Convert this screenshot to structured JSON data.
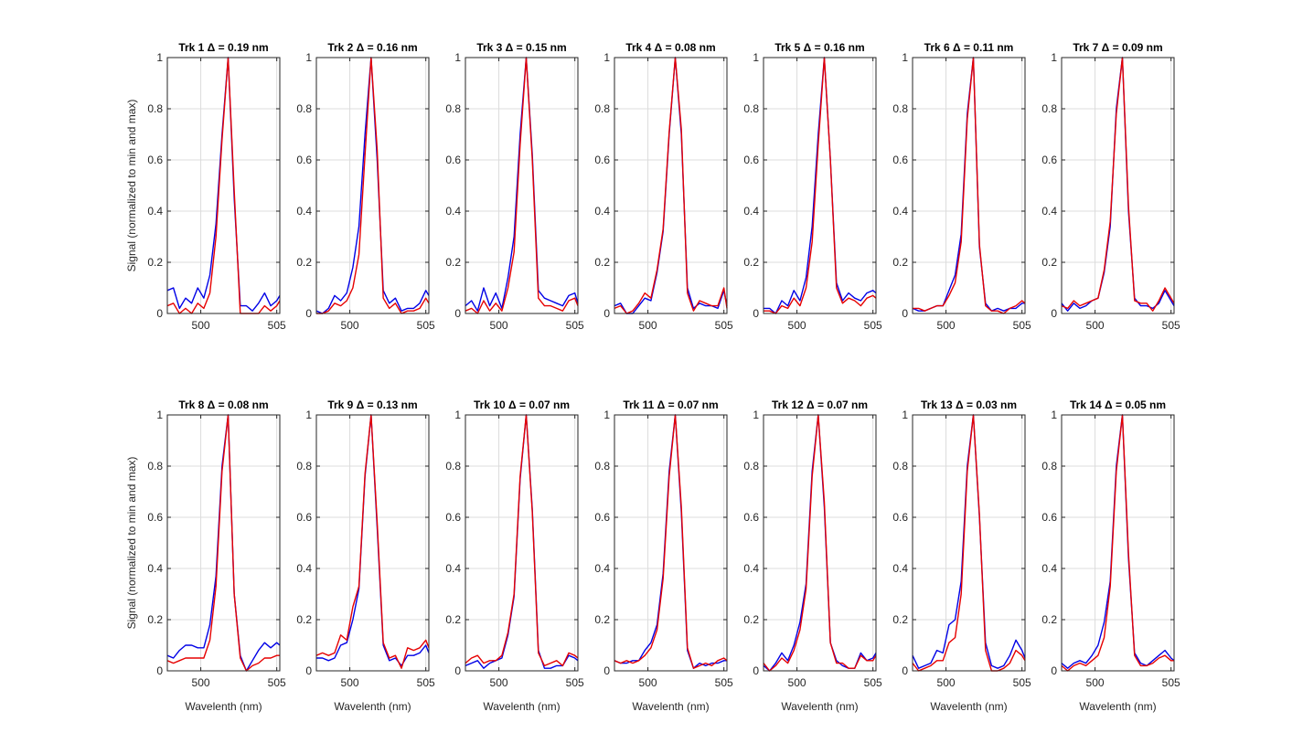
{
  "chart_data": {
    "type": "line",
    "layout": "2x7 small multiples",
    "xlabel": "Wavelenth (nm)",
    "ylabel": "Signal (normalized to min and max)",
    "xlim": [
      497.8,
      505.2
    ],
    "ylim": [
      0,
      1
    ],
    "xticks": [
      500,
      505
    ],
    "xtick_labels": [
      "500",
      "505"
    ],
    "yticks": [
      0,
      0.2,
      0.4,
      0.6,
      0.8,
      1
    ],
    "ytick_labels": [
      "0",
      "0.2",
      "0.4",
      "0.6",
      "0.8",
      "1"
    ],
    "grid": true,
    "x": [
      497.8,
      498.2,
      498.6,
      499.0,
      499.4,
      499.8,
      500.2,
      500.6,
      501.0,
      501.4,
      501.8,
      502.2,
      502.6,
      503.0,
      503.4,
      503.8,
      504.2,
      504.6,
      505.0,
      505.2
    ],
    "series_colors": {
      "blue": "#0000e6",
      "red": "#e60000"
    },
    "subplots": [
      {
        "title": "Trk 1 Δ = 0.19 nm",
        "blue": [
          0.09,
          0.1,
          0.02,
          0.06,
          0.04,
          0.1,
          0.06,
          0.15,
          0.35,
          0.7,
          1.0,
          0.45,
          0.03,
          0.03,
          0.01,
          0.04,
          0.08,
          0.03,
          0.05,
          0.07
        ],
        "red": [
          0.03,
          0.04,
          0.0,
          0.02,
          0.0,
          0.04,
          0.02,
          0.08,
          0.3,
          0.68,
          1.0,
          0.48,
          0.0,
          0.0,
          0.0,
          0.0,
          0.03,
          0.01,
          0.03,
          0.05
        ]
      },
      {
        "title": "Trk 2 Δ = 0.16 nm",
        "blue": [
          0.01,
          0.0,
          0.02,
          0.07,
          0.05,
          0.08,
          0.18,
          0.34,
          0.7,
          1.0,
          0.6,
          0.09,
          0.04,
          0.06,
          0.01,
          0.02,
          0.02,
          0.04,
          0.09,
          0.07
        ],
        "red": [
          0.0,
          0.0,
          0.01,
          0.04,
          0.03,
          0.05,
          0.1,
          0.23,
          0.62,
          1.0,
          0.64,
          0.06,
          0.02,
          0.04,
          0.0,
          0.01,
          0.01,
          0.02,
          0.06,
          0.04
        ]
      },
      {
        "title": "Trk 3 Δ = 0.15 nm",
        "blue": [
          0.03,
          0.05,
          0.01,
          0.1,
          0.03,
          0.08,
          0.02,
          0.14,
          0.3,
          0.7,
          1.0,
          0.62,
          0.09,
          0.06,
          0.05,
          0.04,
          0.03,
          0.07,
          0.08,
          0.04
        ],
        "red": [
          0.01,
          0.02,
          0.0,
          0.05,
          0.01,
          0.04,
          0.01,
          0.1,
          0.24,
          0.66,
          1.0,
          0.6,
          0.06,
          0.03,
          0.03,
          0.02,
          0.01,
          0.05,
          0.06,
          0.03
        ]
      },
      {
        "title": "Trk 4 Δ = 0.08 nm",
        "blue": [
          0.03,
          0.04,
          0.0,
          0.0,
          0.03,
          0.06,
          0.05,
          0.16,
          0.32,
          0.7,
          1.0,
          0.7,
          0.1,
          0.02,
          0.04,
          0.03,
          0.03,
          0.02,
          0.09,
          0.03
        ],
        "red": [
          0.02,
          0.03,
          0.0,
          0.01,
          0.04,
          0.08,
          0.06,
          0.17,
          0.33,
          0.71,
          1.0,
          0.72,
          0.08,
          0.01,
          0.05,
          0.04,
          0.03,
          0.03,
          0.1,
          0.02
        ]
      },
      {
        "title": "Trk 5 Δ = 0.16 nm",
        "blue": [
          0.02,
          0.02,
          0.0,
          0.05,
          0.03,
          0.09,
          0.05,
          0.14,
          0.34,
          0.7,
          1.0,
          0.6,
          0.12,
          0.05,
          0.08,
          0.06,
          0.05,
          0.08,
          0.09,
          0.08
        ],
        "red": [
          0.01,
          0.01,
          0.0,
          0.03,
          0.02,
          0.06,
          0.03,
          0.1,
          0.28,
          0.66,
          1.0,
          0.6,
          0.1,
          0.04,
          0.06,
          0.05,
          0.03,
          0.06,
          0.07,
          0.06
        ]
      },
      {
        "title": "Trk 6 Δ = 0.11 nm",
        "blue": [
          0.02,
          0.01,
          0.01,
          0.02,
          0.03,
          0.03,
          0.09,
          0.15,
          0.31,
          0.78,
          1.0,
          0.26,
          0.04,
          0.01,
          0.02,
          0.01,
          0.02,
          0.02,
          0.04,
          0.04
        ],
        "red": [
          0.02,
          0.02,
          0.01,
          0.02,
          0.03,
          0.03,
          0.07,
          0.12,
          0.28,
          0.76,
          1.0,
          0.27,
          0.03,
          0.01,
          0.01,
          0.0,
          0.02,
          0.03,
          0.05,
          0.04
        ]
      },
      {
        "title": "Trk 7 Δ = 0.09 nm",
        "blue": [
          0.04,
          0.01,
          0.04,
          0.02,
          0.03,
          0.05,
          0.06,
          0.16,
          0.34,
          0.8,
          1.0,
          0.4,
          0.06,
          0.03,
          0.03,
          0.02,
          0.04,
          0.09,
          0.05,
          0.03
        ],
        "red": [
          0.03,
          0.02,
          0.05,
          0.03,
          0.04,
          0.05,
          0.06,
          0.17,
          0.36,
          0.78,
          1.0,
          0.42,
          0.05,
          0.04,
          0.04,
          0.01,
          0.05,
          0.1,
          0.06,
          0.04
        ]
      },
      {
        "title": "Trk 8 Δ = 0.08 nm",
        "blue": [
          0.06,
          0.05,
          0.08,
          0.1,
          0.1,
          0.09,
          0.09,
          0.18,
          0.37,
          0.8,
          1.0,
          0.3,
          0.06,
          0.0,
          0.04,
          0.08,
          0.11,
          0.09,
          0.11,
          0.1
        ],
        "red": [
          0.04,
          0.03,
          0.04,
          0.05,
          0.05,
          0.05,
          0.05,
          0.12,
          0.33,
          0.78,
          1.0,
          0.3,
          0.05,
          0.0,
          0.02,
          0.03,
          0.05,
          0.05,
          0.06,
          0.06
        ]
      },
      {
        "title": "Trk 9 Δ = 0.13 nm",
        "blue": [
          0.05,
          0.05,
          0.04,
          0.05,
          0.1,
          0.11,
          0.2,
          0.32,
          0.76,
          1.0,
          0.56,
          0.1,
          0.04,
          0.05,
          0.02,
          0.06,
          0.06,
          0.07,
          0.1,
          0.07
        ],
        "red": [
          0.06,
          0.07,
          0.06,
          0.07,
          0.14,
          0.12,
          0.25,
          0.33,
          0.77,
          1.0,
          0.58,
          0.11,
          0.05,
          0.06,
          0.01,
          0.09,
          0.08,
          0.09,
          0.12,
          0.09
        ]
      },
      {
        "title": "Trk 10 Δ = 0.07 nm",
        "blue": [
          0.02,
          0.03,
          0.04,
          0.01,
          0.03,
          0.04,
          0.05,
          0.14,
          0.29,
          0.75,
          1.0,
          0.63,
          0.08,
          0.01,
          0.01,
          0.02,
          0.02,
          0.06,
          0.05,
          0.04
        ],
        "red": [
          0.03,
          0.05,
          0.06,
          0.03,
          0.04,
          0.04,
          0.06,
          0.15,
          0.3,
          0.76,
          1.0,
          0.62,
          0.07,
          0.02,
          0.03,
          0.04,
          0.02,
          0.07,
          0.06,
          0.05
        ]
      },
      {
        "title": "Trk 11 Δ = 0.07 nm",
        "blue": [
          0.04,
          0.03,
          0.03,
          0.04,
          0.04,
          0.08,
          0.11,
          0.18,
          0.38,
          0.78,
          1.0,
          0.62,
          0.08,
          0.01,
          0.03,
          0.02,
          0.03,
          0.03,
          0.04,
          0.04
        ],
        "red": [
          0.04,
          0.03,
          0.04,
          0.03,
          0.04,
          0.06,
          0.09,
          0.16,
          0.36,
          0.76,
          1.0,
          0.64,
          0.09,
          0.01,
          0.02,
          0.03,
          0.02,
          0.04,
          0.05,
          0.04
        ]
      },
      {
        "title": "Trk 12 Δ = 0.07 nm",
        "blue": [
          0.02,
          0.0,
          0.03,
          0.07,
          0.04,
          0.1,
          0.19,
          0.34,
          0.78,
          1.0,
          0.64,
          0.11,
          0.04,
          0.02,
          0.01,
          0.01,
          0.07,
          0.04,
          0.05,
          0.07
        ],
        "red": [
          0.03,
          0.0,
          0.02,
          0.05,
          0.03,
          0.08,
          0.16,
          0.32,
          0.76,
          1.0,
          0.66,
          0.11,
          0.03,
          0.03,
          0.01,
          0.01,
          0.06,
          0.04,
          0.04,
          0.06
        ]
      },
      {
        "title": "Trk 13 Δ = 0.03 nm",
        "blue": [
          0.06,
          0.01,
          0.02,
          0.03,
          0.08,
          0.07,
          0.18,
          0.2,
          0.35,
          0.8,
          1.0,
          0.6,
          0.11,
          0.02,
          0.01,
          0.02,
          0.06,
          0.12,
          0.08,
          0.05
        ],
        "red": [
          0.03,
          0.0,
          0.01,
          0.02,
          0.04,
          0.04,
          0.11,
          0.13,
          0.3,
          0.78,
          1.0,
          0.61,
          0.08,
          0.0,
          0.0,
          0.01,
          0.03,
          0.08,
          0.06,
          0.04
        ]
      },
      {
        "title": "Trk 14 Δ = 0.05 nm",
        "blue": [
          0.03,
          0.01,
          0.03,
          0.04,
          0.03,
          0.06,
          0.1,
          0.19,
          0.35,
          0.8,
          1.0,
          0.44,
          0.07,
          0.03,
          0.02,
          0.04,
          0.06,
          0.08,
          0.05,
          0.04
        ],
        "red": [
          0.02,
          0.0,
          0.02,
          0.03,
          0.02,
          0.04,
          0.06,
          0.13,
          0.33,
          0.78,
          1.0,
          0.46,
          0.06,
          0.02,
          0.02,
          0.03,
          0.05,
          0.06,
          0.04,
          0.04
        ]
      }
    ]
  }
}
